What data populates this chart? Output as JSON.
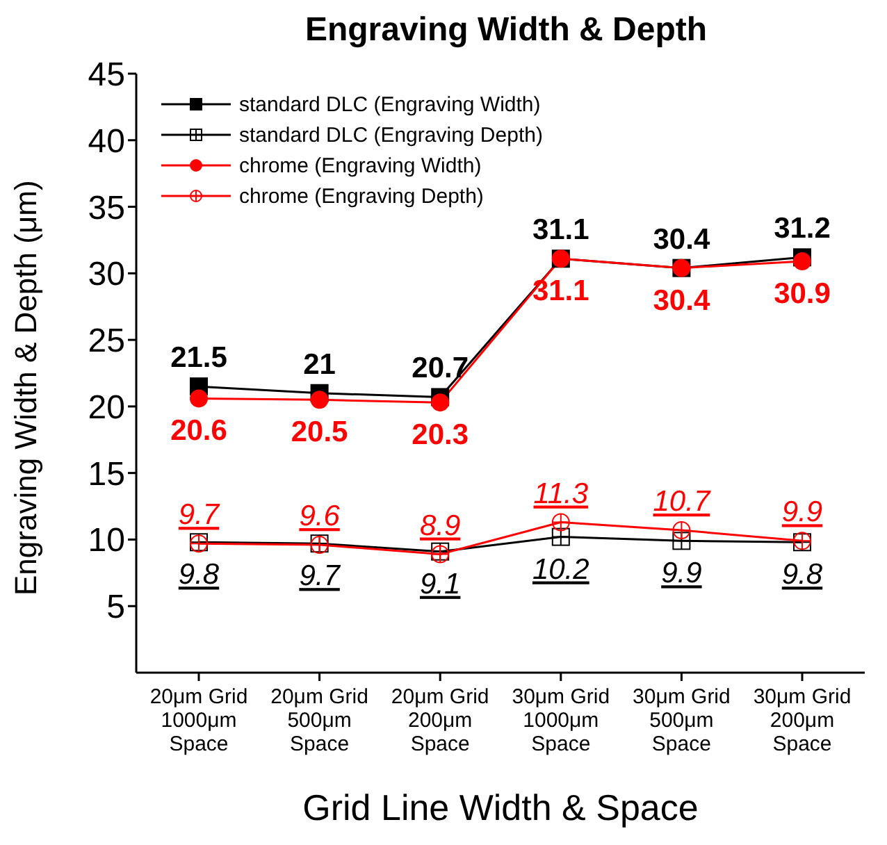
{
  "chart_data": {
    "type": "line",
    "title": "Engraving Width & Depth",
    "xlabel": "Grid Line Width & Space",
    "ylabel": "Engraving Width & Depth (μm)",
    "categories": [
      "20μm Grid\n1000μm\nSpace",
      "20μm Grid\n500μm\nSpace",
      "20μm Grid\n200μm\nSpace",
      "30μm Grid\n1000μm\nSpace",
      "30μm Grid\n500μm\nSpace",
      "30μm Grid\n200μm\nSpace"
    ],
    "series": [
      {
        "name": "standard DLC (Engraving Width)",
        "color": "#000000",
        "marker": "square",
        "values": [
          21.5,
          21,
          20.7,
          31.1,
          30.4,
          31.2
        ]
      },
      {
        "name": "standard DLC (Engraving Depth)",
        "color": "#000000",
        "marker": "square",
        "values": [
          9.8,
          9.7,
          9.1,
          10.2,
          9.9,
          9.8
        ]
      },
      {
        "name": "chrome (Engraving Width)",
        "color": "#ff0000",
        "marker": "circle",
        "values": [
          20.6,
          20.5,
          20.3,
          31.1,
          30.4,
          30.9
        ]
      },
      {
        "name": "chrome (Engraving Depth)",
        "color": "#ff0000",
        "marker": "circle",
        "values": [
          9.7,
          9.6,
          8.9,
          11.3,
          10.7,
          9.9
        ]
      }
    ],
    "ylim": [
      0,
      45
    ],
    "yticks": [
      5,
      10,
      15,
      20,
      25,
      30,
      35,
      40,
      45
    ],
    "data_labels": true,
    "legend": "top left",
    "grid": false
  }
}
